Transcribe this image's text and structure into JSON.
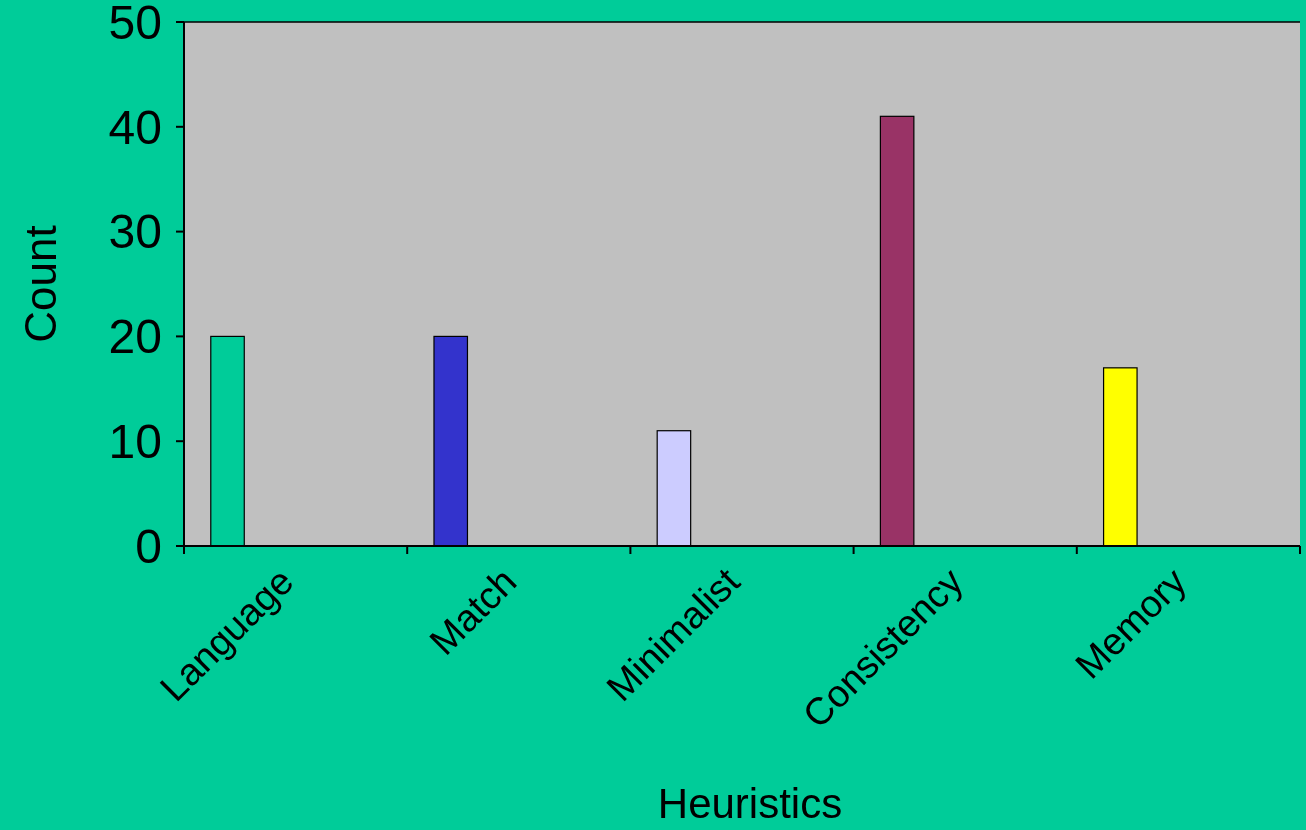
{
  "chart_data": {
    "type": "bar",
    "xlabel": "Heuristics",
    "ylabel": "Count",
    "categories": [
      "Language",
      "Match",
      "Minimalist",
      "Consistency",
      "Memory"
    ],
    "values": [
      20,
      20,
      11,
      41,
      17
    ],
    "colors": [
      "#00cc99",
      "#3333cc",
      "#ccccff",
      "#993366",
      "#ffff00"
    ],
    "ylim": [
      0,
      50
    ],
    "yticks": [
      0,
      10,
      20,
      30,
      40,
      50
    ],
    "grid": false
  }
}
